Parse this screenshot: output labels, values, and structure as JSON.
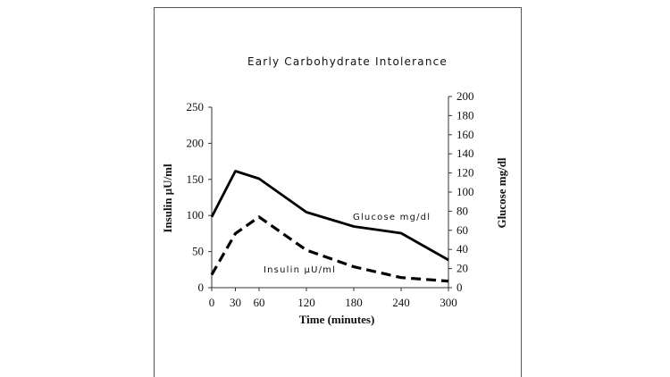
{
  "chart_data": {
    "type": "line",
    "title": "Early Carbohydrate Intolerance",
    "xlabel": "Time (minutes)",
    "ylabel_left": "Insulin µU/ml",
    "ylabel_right": "Glucose mg/dl",
    "x_ticks": [
      "0",
      "30",
      "60",
      "120",
      "180",
      "240",
      "300"
    ],
    "y_left_ticks": [
      "0",
      "50",
      "100",
      "150",
      "200",
      "250"
    ],
    "y_right_ticks": [
      "0",
      "20",
      "40",
      "60",
      "80",
      "100",
      "120",
      "140",
      "160",
      "180",
      "200"
    ],
    "xlim": [
      0,
      300
    ],
    "ylim_left": [
      0,
      250
    ],
    "ylim_right": [
      0,
      200
    ],
    "grid": false,
    "series": [
      {
        "name": "Glucose mg/dl",
        "axis": "right",
        "style": "solid",
        "x": [
          0,
          30,
          60,
          120,
          180,
          240,
          300
        ],
        "y": [
          74,
          122,
          114,
          79,
          64,
          57,
          29
        ]
      },
      {
        "name": "Insulin µU/ml",
        "axis": "left",
        "style": "dashed",
        "x": [
          0,
          30,
          60,
          120,
          180,
          240,
          300
        ],
        "y": [
          18,
          75,
          98,
          52,
          29,
          14,
          9
        ]
      }
    ]
  }
}
